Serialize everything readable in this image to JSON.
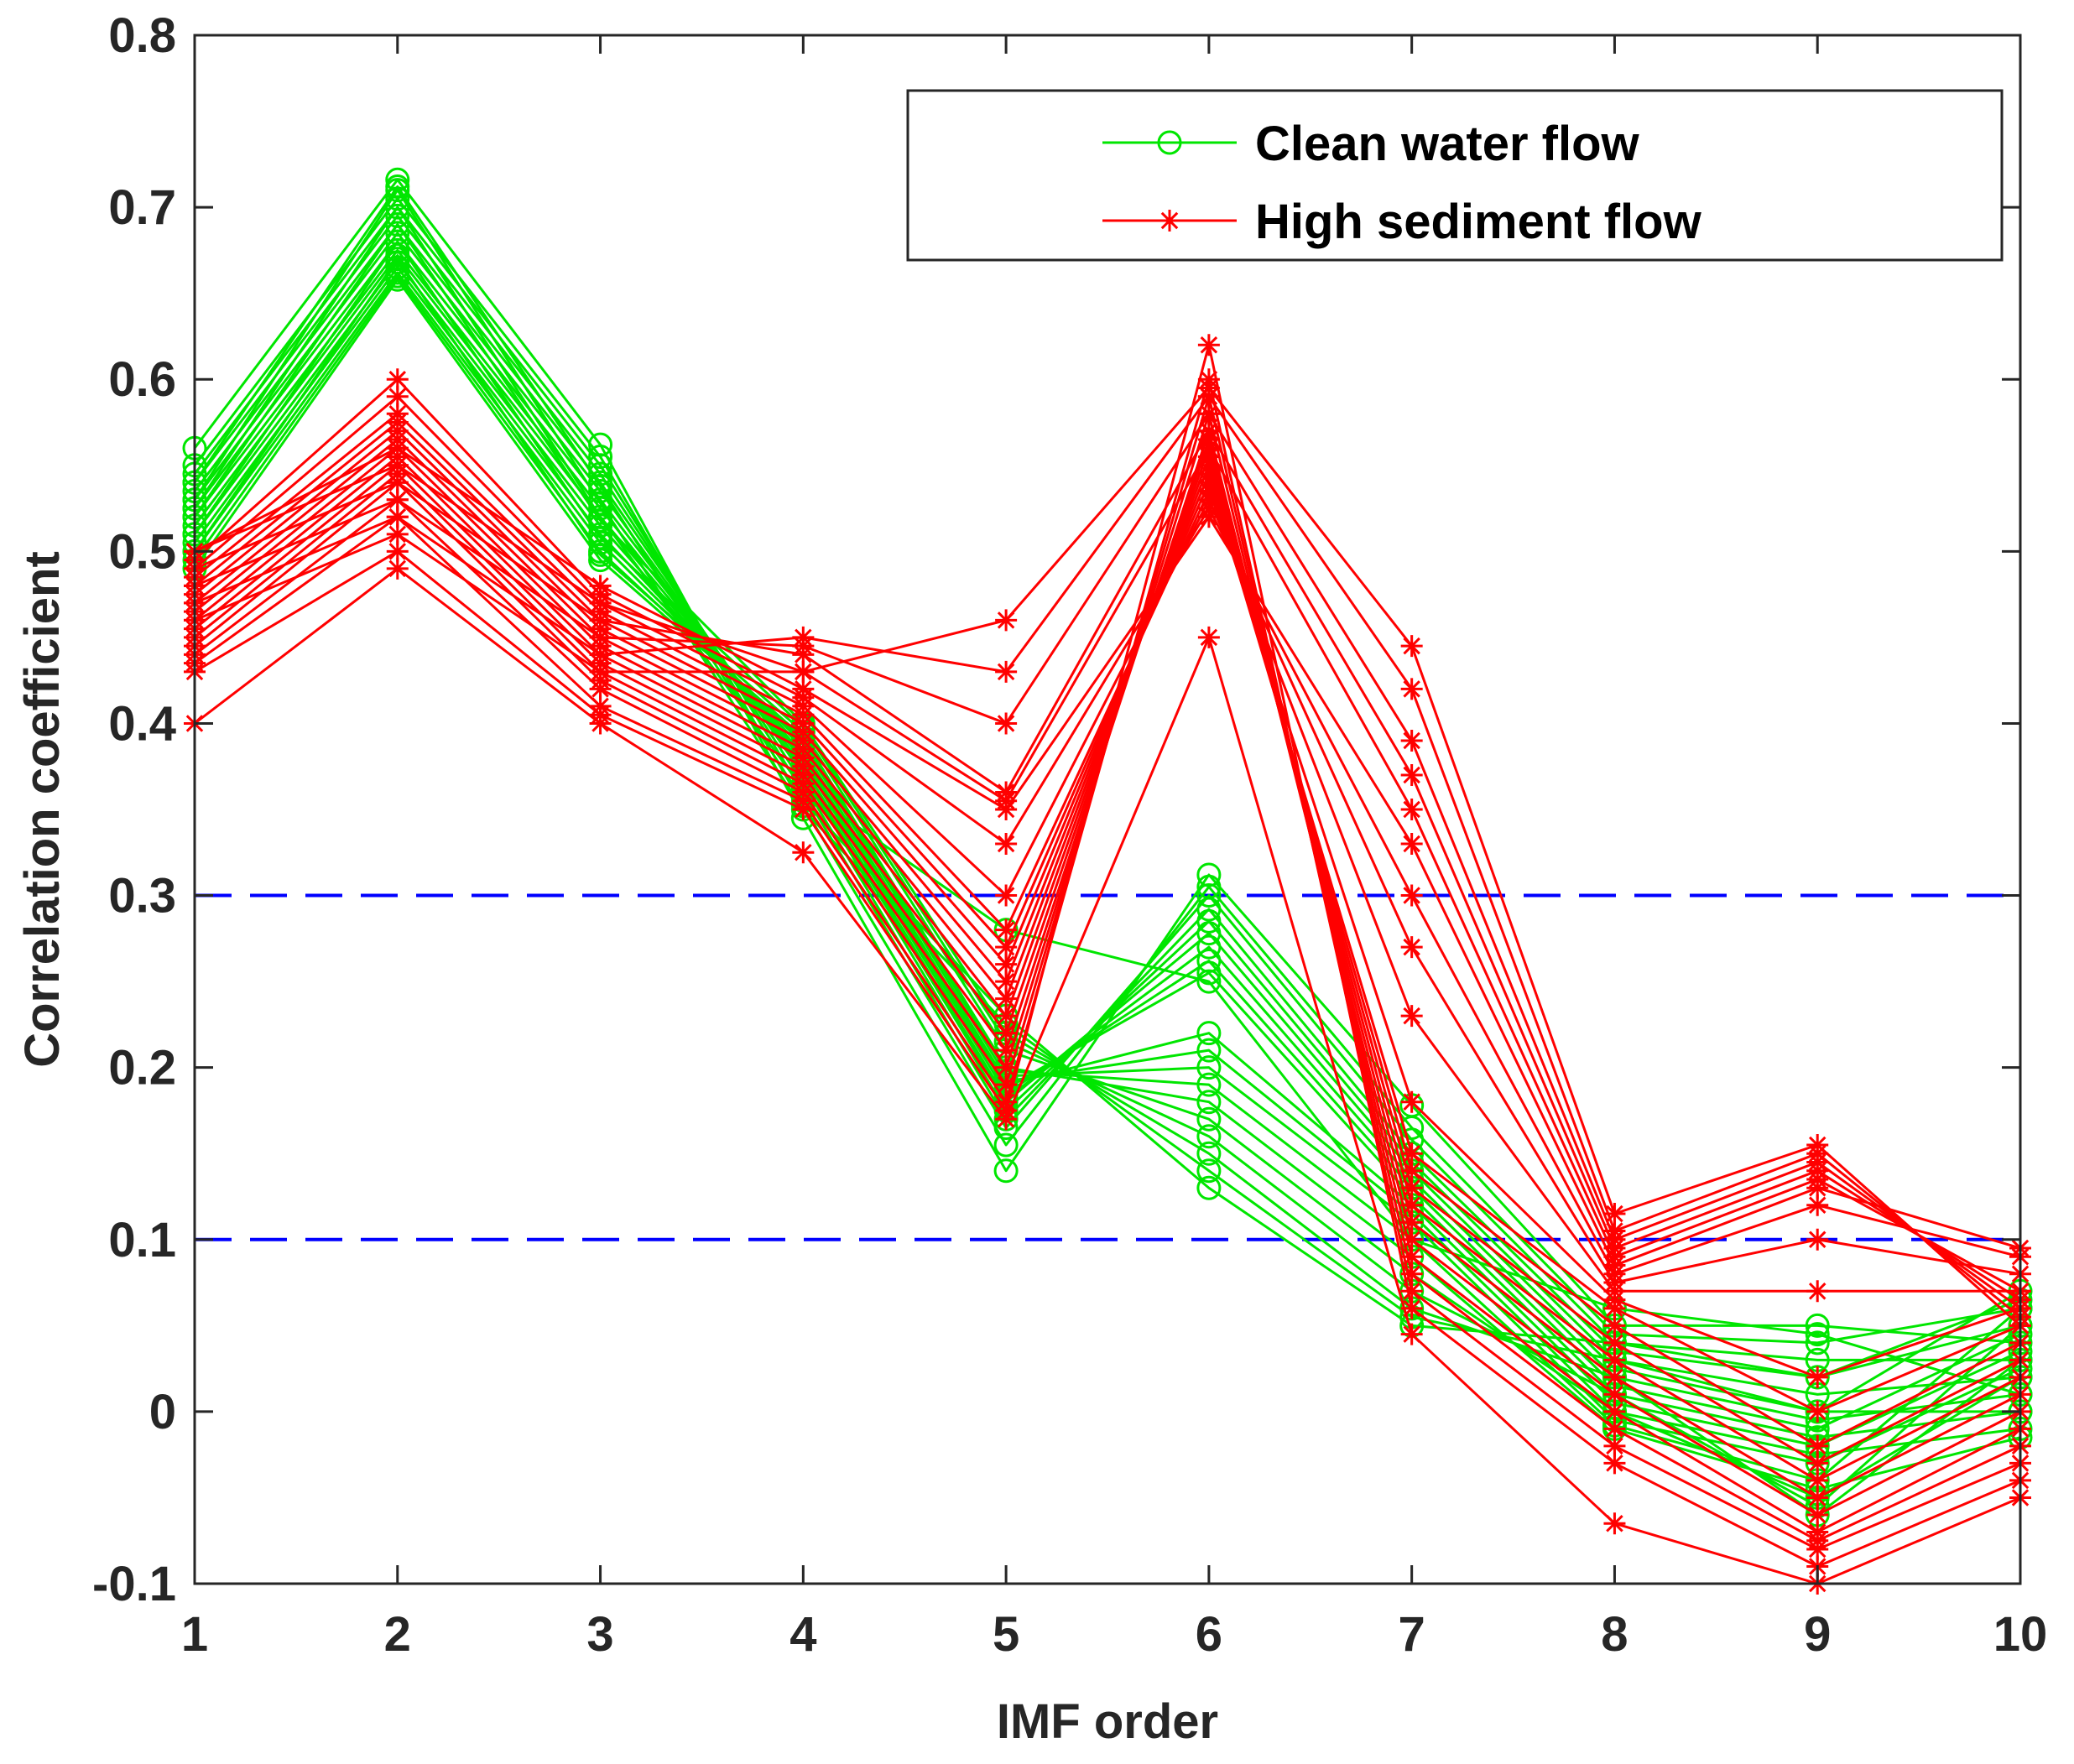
{
  "chart_data": {
    "type": "line",
    "title": "",
    "xlabel": "IMF order",
    "ylabel": "Correlation coefficient",
    "x": [
      1,
      2,
      3,
      4,
      5,
      6,
      7,
      8,
      9,
      10
    ],
    "xlim": [
      1,
      10
    ],
    "ylim": [
      -0.1,
      0.8
    ],
    "xticks": [
      "1",
      "2",
      "3",
      "4",
      "5",
      "6",
      "7",
      "8",
      "9",
      "10"
    ],
    "yticks": [
      "-0.1",
      "0",
      "0.1",
      "0.2",
      "0.3",
      "0.4",
      "0.5",
      "0.6",
      "0.7",
      "0.8"
    ],
    "legend_position": "top-right",
    "thresholds": [
      {
        "name": "upper-threshold",
        "value": 0.3,
        "color": "#0000ff"
      },
      {
        "name": "lower-threshold",
        "value": 0.1,
        "color": "#0000ff"
      }
    ],
    "groups": [
      {
        "name": "Clean water flow",
        "color": "#00e600",
        "marker": "circle",
        "series": [
          [
            0.56,
            0.716,
            0.562,
            0.345,
            0.14,
            0.312,
            0.178,
            0.05,
            0.05,
            0.04
          ],
          [
            0.55,
            0.705,
            0.555,
            0.352,
            0.155,
            0.305,
            0.165,
            0.045,
            0.04,
            0.06
          ],
          [
            0.545,
            0.7,
            0.55,
            0.36,
            0.165,
            0.3,
            0.158,
            0.04,
            0.03,
            0.03
          ],
          [
            0.54,
            0.695,
            0.545,
            0.365,
            0.17,
            0.292,
            0.15,
            0.035,
            0.02,
            0.05
          ],
          [
            0.535,
            0.69,
            0.54,
            0.37,
            0.175,
            0.285,
            0.145,
            0.03,
            0.01,
            0.02
          ],
          [
            0.53,
            0.685,
            0.535,
            0.372,
            0.18,
            0.278,
            0.14,
            0.025,
            0.0,
            0.07
          ],
          [
            0.525,
            0.68,
            0.53,
            0.375,
            0.182,
            0.27,
            0.135,
            0.02,
            -0.005,
            0.01
          ],
          [
            0.52,
            0.675,
            0.525,
            0.378,
            0.185,
            0.262,
            0.13,
            0.015,
            -0.01,
            0.045
          ],
          [
            0.515,
            0.672,
            0.52,
            0.38,
            0.188,
            0.255,
            0.125,
            0.01,
            -0.015,
            0.0
          ],
          [
            0.51,
            0.668,
            0.515,
            0.382,
            0.19,
            0.22,
            0.12,
            0.005,
            -0.02,
            0.035
          ],
          [
            0.505,
            0.665,
            0.51,
            0.385,
            0.192,
            0.21,
            0.115,
            0.0,
            -0.025,
            -0.01
          ],
          [
            0.5,
            0.662,
            0.505,
            0.388,
            0.195,
            0.2,
            0.11,
            -0.005,
            -0.03,
            0.025
          ],
          [
            0.495,
            0.66,
            0.5,
            0.39,
            0.198,
            0.19,
            0.1,
            -0.008,
            -0.04,
            0.06
          ],
          [
            0.49,
            0.658,
            0.495,
            0.392,
            0.2,
            0.18,
            0.09,
            -0.01,
            -0.045,
            -0.015
          ],
          [
            0.5,
            0.67,
            0.498,
            0.395,
            0.21,
            0.17,
            0.08,
            0.0,
            -0.05,
            0.02
          ],
          [
            0.51,
            0.68,
            0.508,
            0.398,
            0.215,
            0.16,
            0.07,
            0.01,
            -0.055,
            0.05
          ],
          [
            0.52,
            0.69,
            0.518,
            0.4,
            0.22,
            0.15,
            0.06,
            0.02,
            -0.06,
            0.03
          ],
          [
            0.53,
            0.71,
            0.528,
            0.35,
            0.225,
            0.14,
            0.055,
            0.03,
            0.0,
            0.0
          ],
          [
            0.54,
            0.712,
            0.538,
            0.355,
            0.23,
            0.13,
            0.05,
            0.04,
            0.02,
            0.065
          ],
          [
            0.525,
            0.7,
            0.52,
            0.362,
            0.28,
            0.25,
            0.1,
            0.06,
            0.045,
            0.01
          ]
        ]
      },
      {
        "name": "High sediment flow",
        "color": "#ff0000",
        "marker": "star",
        "series": [
          [
            0.4,
            0.49,
            0.4,
            0.325,
            0.17,
            0.45,
            0.045,
            -0.065,
            -0.1,
            -0.05
          ],
          [
            0.43,
            0.5,
            0.405,
            0.35,
            0.175,
            0.62,
            0.06,
            -0.03,
            -0.09,
            -0.04
          ],
          [
            0.435,
            0.52,
            0.41,
            0.355,
            0.18,
            0.6,
            0.07,
            -0.02,
            -0.08,
            -0.03
          ],
          [
            0.44,
            0.53,
            0.42,
            0.36,
            0.19,
            0.59,
            0.08,
            -0.01,
            -0.075,
            -0.02
          ],
          [
            0.445,
            0.54,
            0.425,
            0.365,
            0.2,
            0.58,
            0.09,
            0.0,
            -0.07,
            -0.01
          ],
          [
            0.45,
            0.545,
            0.43,
            0.37,
            0.21,
            0.57,
            0.1,
            0.01,
            -0.06,
            0.0
          ],
          [
            0.455,
            0.55,
            0.435,
            0.375,
            0.22,
            0.565,
            0.11,
            0.02,
            -0.05,
            0.01
          ],
          [
            0.46,
            0.555,
            0.44,
            0.38,
            0.23,
            0.56,
            0.12,
            0.03,
            -0.04,
            0.02
          ],
          [
            0.465,
            0.56,
            0.445,
            0.385,
            0.24,
            0.555,
            0.13,
            0.04,
            -0.03,
            0.03
          ],
          [
            0.47,
            0.565,
            0.45,
            0.39,
            0.25,
            0.55,
            0.14,
            0.05,
            -0.02,
            0.04
          ],
          [
            0.475,
            0.57,
            0.455,
            0.395,
            0.26,
            0.545,
            0.15,
            0.06,
            0.0,
            0.05
          ],
          [
            0.48,
            0.575,
            0.46,
            0.4,
            0.27,
            0.54,
            0.18,
            0.065,
            0.02,
            0.06
          ],
          [
            0.485,
            0.58,
            0.465,
            0.405,
            0.28,
            0.535,
            0.23,
            0.07,
            0.07,
            0.07
          ],
          [
            0.49,
            0.59,
            0.47,
            0.41,
            0.3,
            0.53,
            0.27,
            0.075,
            0.1,
            0.08
          ],
          [
            0.495,
            0.6,
            0.475,
            0.415,
            0.33,
            0.525,
            0.3,
            0.08,
            0.12,
            0.09
          ],
          [
            0.5,
            0.56,
            0.48,
            0.42,
            0.35,
            0.52,
            0.33,
            0.085,
            0.13,
            0.095
          ],
          [
            0.5,
            0.55,
            0.47,
            0.43,
            0.355,
            0.56,
            0.35,
            0.09,
            0.135,
            0.07
          ],
          [
            0.49,
            0.54,
            0.46,
            0.44,
            0.36,
            0.57,
            0.37,
            0.095,
            0.14,
            0.065
          ],
          [
            0.48,
            0.53,
            0.45,
            0.445,
            0.4,
            0.58,
            0.39,
            0.1,
            0.145,
            0.06
          ],
          [
            0.47,
            0.52,
            0.44,
            0.45,
            0.43,
            0.59,
            0.42,
            0.105,
            0.15,
            0.055
          ],
          [
            0.46,
            0.51,
            0.43,
            0.43,
            0.46,
            0.595,
            0.445,
            0.115,
            0.155,
            0.05
          ]
        ]
      }
    ]
  }
}
